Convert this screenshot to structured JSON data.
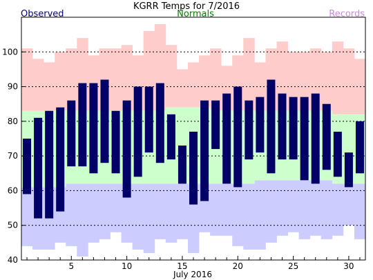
{
  "chart_data": {
    "type": "bar",
    "title": "KGRR Temps for 7/2016",
    "xlabel": "July 2016",
    "legend": {
      "observed": "Observed",
      "normals": "Normals",
      "records": "Records"
    },
    "colors": {
      "observed": "#000066",
      "normals": "#ccffcc",
      "records": "#ffcccc",
      "records_low": "#ccccff",
      "observed_label": "#000080",
      "normals_label": "#008000",
      "records_label": "#cc88dd"
    },
    "ylim": [
      40,
      110
    ],
    "yticks": [
      40,
      50,
      60,
      70,
      80,
      90,
      100
    ],
    "xlim": [
      0.5,
      31.5
    ],
    "xticks": [
      5,
      10,
      15,
      20,
      25,
      30
    ],
    "grid": {
      "y_dashed": [
        50,
        60,
        70,
        80,
        90,
        100
      ]
    },
    "days": [
      1,
      2,
      3,
      4,
      5,
      6,
      7,
      8,
      9,
      10,
      11,
      12,
      13,
      14,
      15,
      16,
      17,
      18,
      19,
      20,
      21,
      22,
      23,
      24,
      25,
      26,
      27,
      28,
      29,
      30,
      31
    ],
    "observed_high": [
      75,
      81,
      83,
      84,
      86,
      91,
      91,
      92,
      83,
      86,
      90,
      90,
      91,
      82,
      73,
      77,
      86,
      86,
      88,
      90,
      86,
      87,
      92,
      88,
      87,
      87,
      88,
      85,
      77,
      71,
      80
    ],
    "observed_low": [
      59,
      52,
      52,
      54,
      67,
      67,
      65,
      68,
      65,
      58,
      64,
      71,
      68,
      69,
      62,
      56,
      57,
      72,
      62,
      61,
      69,
      71,
      65,
      69,
      69,
      63,
      62,
      66,
      64,
      61,
      65
    ],
    "normal_high": [
      83,
      83,
      83,
      83,
      83,
      83,
      83,
      83,
      83,
      83,
      83,
      83,
      83,
      84,
      84,
      84,
      84,
      83,
      83,
      83,
      83,
      83,
      83,
      83,
      83,
      83,
      83,
      83,
      82,
      82,
      82
    ],
    "normal_low": [
      61,
      61,
      61,
      61,
      62,
      62,
      62,
      62,
      62,
      62,
      62,
      62,
      62,
      62,
      62,
      62,
      62,
      62,
      62,
      62,
      62,
      63,
      63,
      63,
      63,
      63,
      63,
      63,
      62,
      62,
      62
    ],
    "record_high": [
      101,
      98,
      97,
      100,
      101,
      104,
      99,
      101,
      101,
      102,
      99,
      106,
      108,
      102,
      95,
      97,
      99,
      101,
      96,
      99,
      104,
      97,
      101,
      103,
      100,
      100,
      101,
      100,
      103,
      101,
      98
    ],
    "record_low": [
      44,
      43,
      43,
      45,
      44,
      41,
      45,
      46,
      48,
      45,
      43,
      42,
      46,
      45,
      46,
      42,
      48,
      47,
      47,
      44,
      43,
      43,
      45,
      47,
      48,
      46,
      47,
      46,
      47,
      50,
      46
    ]
  }
}
